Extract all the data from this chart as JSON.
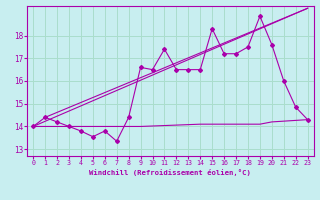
{
  "xlabel": "Windchill (Refroidissement éolien,°C)",
  "background_color": "#c8eef0",
  "grid_color": "#aaddcc",
  "line_color": "#aa00aa",
  "xlim": [
    -0.5,
    23.5
  ],
  "ylim": [
    12.7,
    19.3
  ],
  "x_ticks": [
    0,
    1,
    2,
    3,
    4,
    5,
    6,
    7,
    8,
    9,
    10,
    11,
    12,
    13,
    14,
    15,
    16,
    17,
    18,
    19,
    20,
    21,
    22,
    23
  ],
  "y_ticks": [
    13,
    14,
    15,
    16,
    17,
    18
  ],
  "line1_x": [
    0,
    1,
    2,
    3,
    4,
    5,
    6,
    7,
    8,
    9,
    10,
    11,
    12,
    13,
    14,
    15,
    16,
    17,
    18,
    19,
    20,
    21,
    22,
    23
  ],
  "line1_y": [
    14.0,
    14.4,
    14.2,
    14.0,
    13.8,
    13.55,
    13.8,
    13.35,
    14.4,
    16.6,
    16.5,
    17.4,
    16.5,
    16.5,
    16.5,
    18.3,
    17.2,
    17.2,
    17.5,
    18.85,
    17.6,
    16.0,
    14.85,
    14.3
  ],
  "line2_x": [
    0,
    8,
    9,
    14,
    15,
    19,
    20,
    23
  ],
  "line2_y": [
    14.0,
    14.0,
    14.0,
    14.1,
    14.1,
    14.1,
    14.2,
    14.3
  ],
  "line3_x": [
    0,
    23
  ],
  "line3_y": [
    14.0,
    19.2
  ],
  "line4_x": [
    1,
    23
  ],
  "line4_y": [
    14.4,
    19.2
  ]
}
